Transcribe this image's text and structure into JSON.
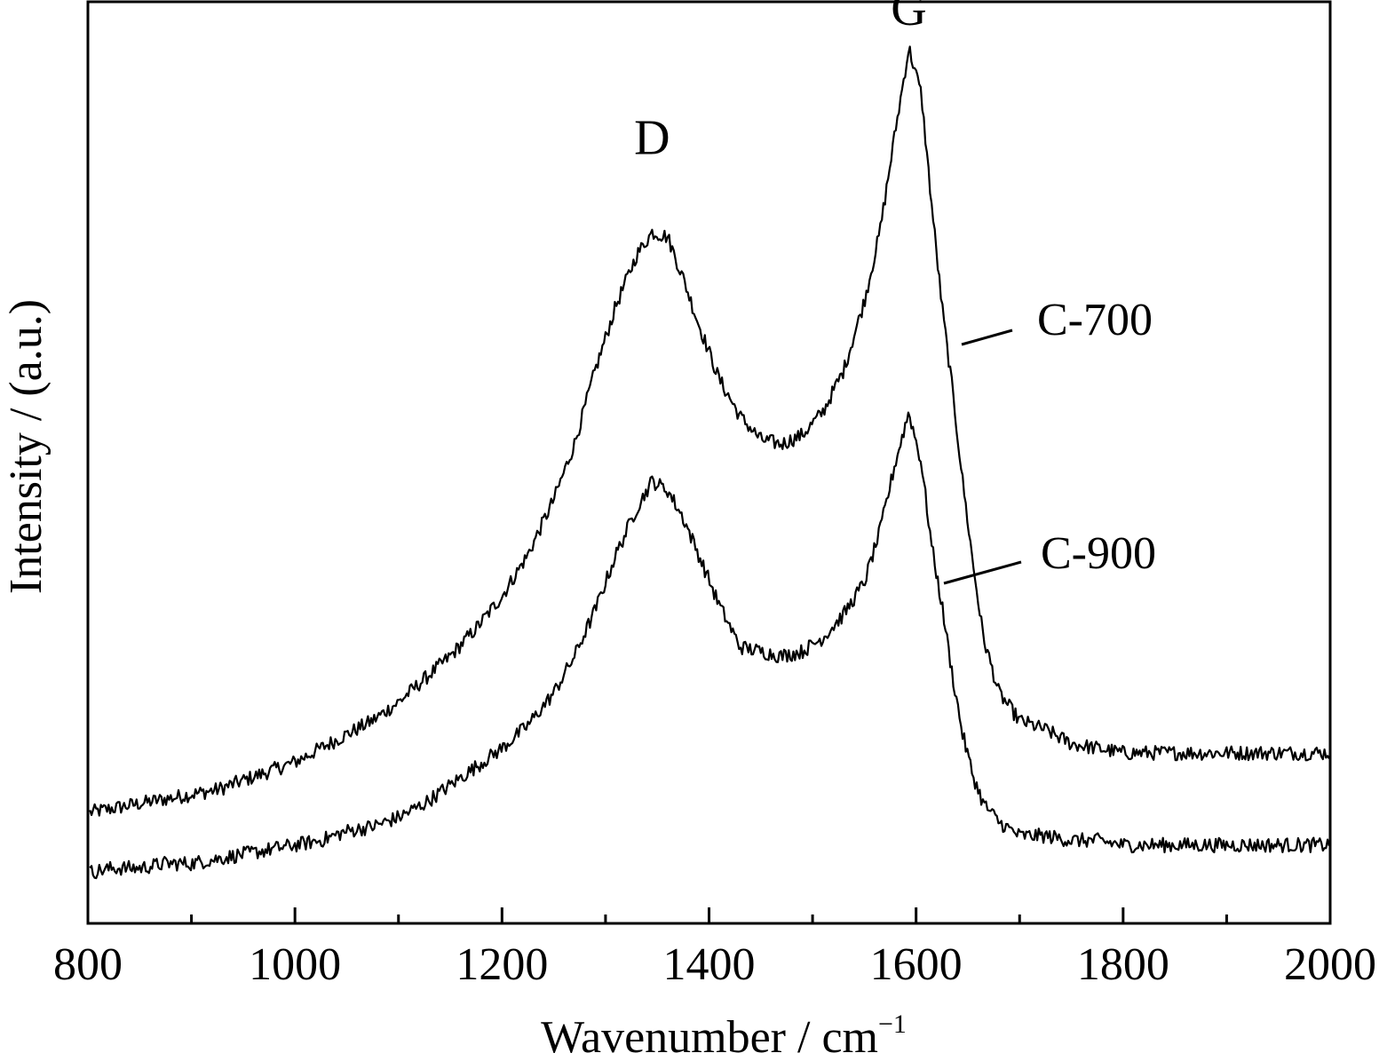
{
  "chart_data": {
    "type": "line",
    "title": "",
    "xlabel_main": "Wavenumber / cm",
    "xlabel_sup": "−1",
    "ylabel": "Intensity / (a.u.)",
    "xlim": [
      800,
      2000
    ],
    "ylim": [
      0,
      100
    ],
    "x_ticks": [
      800,
      1000,
      1200,
      1400,
      1600,
      1800,
      2000
    ],
    "x_minor_ticks": [
      900,
      1100,
      1300,
      1500,
      1700,
      1900
    ],
    "y_ticks_visible": false,
    "grid": false,
    "legend": "none",
    "peak_labels": [
      {
        "text": "D",
        "x": 1345,
        "y": 83.5
      },
      {
        "text": "G",
        "x": 1593,
        "y": 97.5
      }
    ],
    "series_labels": [
      {
        "text": "C-700",
        "series": 0
      },
      {
        "text": "C-900",
        "series": 1
      }
    ],
    "series": [
      {
        "name": "C-700",
        "x": [
          800,
          825,
          850,
          875,
          900,
          925,
          950,
          975,
          1000,
          1025,
          1050,
          1075,
          1100,
          1125,
          1150,
          1175,
          1200,
          1225,
          1250,
          1270,
          1290,
          1310,
          1330,
          1345,
          1360,
          1375,
          1390,
          1410,
          1430,
          1450,
          1470,
          1490,
          1510,
          1530,
          1550,
          1565,
          1580,
          1593,
          1605,
          1615,
          1625,
          1635,
          1645,
          1655,
          1665,
          1680,
          1700,
          1725,
          1750,
          1775,
          1800,
          1850,
          1900,
          1950,
          2000
        ],
        "y": [
          12,
          12.5,
          13,
          13.5,
          14,
          14.5,
          15.5,
          16.5,
          17.5,
          19,
          20.5,
          22,
          24,
          26.5,
          29,
          32,
          35.5,
          40,
          46,
          52,
          60,
          67,
          72.5,
          75,
          74.5,
          70,
          65,
          59,
          55,
          52.5,
          52,
          53,
          55.5,
          60,
          67.5,
          75,
          86,
          95,
          90,
          78,
          67,
          58,
          48,
          39,
          31,
          25,
          22,
          21,
          19.5,
          19,
          18.5,
          18.5,
          18.5,
          18.5,
          18.5
        ]
      },
      {
        "name": "C-900",
        "x": [
          800,
          825,
          850,
          875,
          900,
          925,
          950,
          975,
          1000,
          1025,
          1050,
          1075,
          1100,
          1125,
          1150,
          1175,
          1200,
          1225,
          1250,
          1270,
          1290,
          1310,
          1330,
          1345,
          1360,
          1375,
          1390,
          1410,
          1430,
          1450,
          1470,
          1490,
          1510,
          1530,
          1550,
          1565,
          1580,
          1593,
          1605,
          1615,
          1625,
          1635,
          1645,
          1655,
          1665,
          1680,
          1700,
          1725,
          1750,
          1775,
          1800,
          1850,
          1900,
          1950,
          2000
        ],
        "y": [
          5.5,
          6,
          6,
          6.5,
          6.5,
          7,
          7.5,
          8,
          8.5,
          9,
          10,
          10.5,
          11.5,
          13,
          15,
          17,
          19,
          21.5,
          25,
          29,
          34,
          40,
          45,
          48,
          47,
          44,
          40,
          34.5,
          30,
          29.5,
          29,
          29.5,
          31,
          33.5,
          37,
          42.5,
          50,
          55.5,
          50,
          41,
          34.5,
          27,
          20.5,
          16,
          13,
          11,
          9.5,
          9.5,
          9,
          9,
          8.5,
          8.5,
          8.5,
          8.5,
          8.5
        ]
      }
    ]
  }
}
